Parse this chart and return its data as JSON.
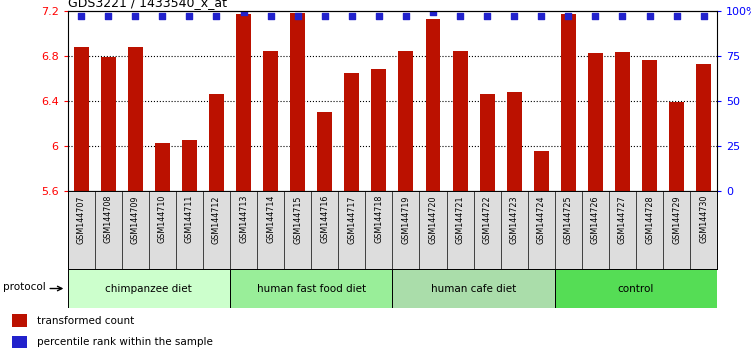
{
  "title": "GDS3221 / 1433540_x_at",
  "samples": [
    "GSM144707",
    "GSM144708",
    "GSM144709",
    "GSM144710",
    "GSM144711",
    "GSM144712",
    "GSM144713",
    "GSM144714",
    "GSM144715",
    "GSM144716",
    "GSM144717",
    "GSM144718",
    "GSM144719",
    "GSM144720",
    "GSM144721",
    "GSM144722",
    "GSM144723",
    "GSM144724",
    "GSM144725",
    "GSM144726",
    "GSM144727",
    "GSM144728",
    "GSM144729",
    "GSM144730"
  ],
  "bar_values": [
    6.88,
    6.79,
    6.88,
    6.03,
    6.05,
    6.46,
    7.17,
    6.84,
    7.18,
    6.3,
    6.65,
    6.68,
    6.84,
    7.13,
    6.84,
    6.46,
    6.48,
    5.96,
    7.17,
    6.82,
    6.83,
    6.76,
    6.39,
    6.73
  ],
  "percentile_values": [
    97,
    97,
    97,
    97,
    97,
    97,
    99,
    97,
    97,
    97,
    97,
    97,
    97,
    99,
    97,
    97,
    97,
    97,
    97,
    97,
    97,
    97,
    97,
    97
  ],
  "bar_color": "#bb1100",
  "percentile_color": "#2222cc",
  "ylim_left": [
    5.6,
    7.2
  ],
  "ylim_right": [
    0,
    100
  ],
  "yticks_left": [
    5.6,
    6.0,
    6.4,
    6.8,
    7.2
  ],
  "ytick_labels_left": [
    "5.6",
    "6",
    "6.4",
    "6.8",
    "7.2"
  ],
  "yticks_right": [
    0,
    25,
    50,
    75,
    100
  ],
  "ytick_labels_right": [
    "0",
    "25",
    "50",
    "75",
    "100%"
  ],
  "groups": [
    {
      "label": "chimpanzee diet",
      "start": 0,
      "end": 5,
      "color": "#ccffcc"
    },
    {
      "label": "human fast food diet",
      "start": 6,
      "end": 11,
      "color": "#99ee99"
    },
    {
      "label": "human cafe diet",
      "start": 12,
      "end": 17,
      "color": "#aaddaa"
    },
    {
      "label": "control",
      "start": 18,
      "end": 23,
      "color": "#55dd55"
    }
  ],
  "protocol_label": "protocol",
  "legend_bar_label": "transformed count",
  "legend_dot_label": "percentile rank within the sample",
  "bar_bottom": 5.6,
  "bar_width": 0.55
}
